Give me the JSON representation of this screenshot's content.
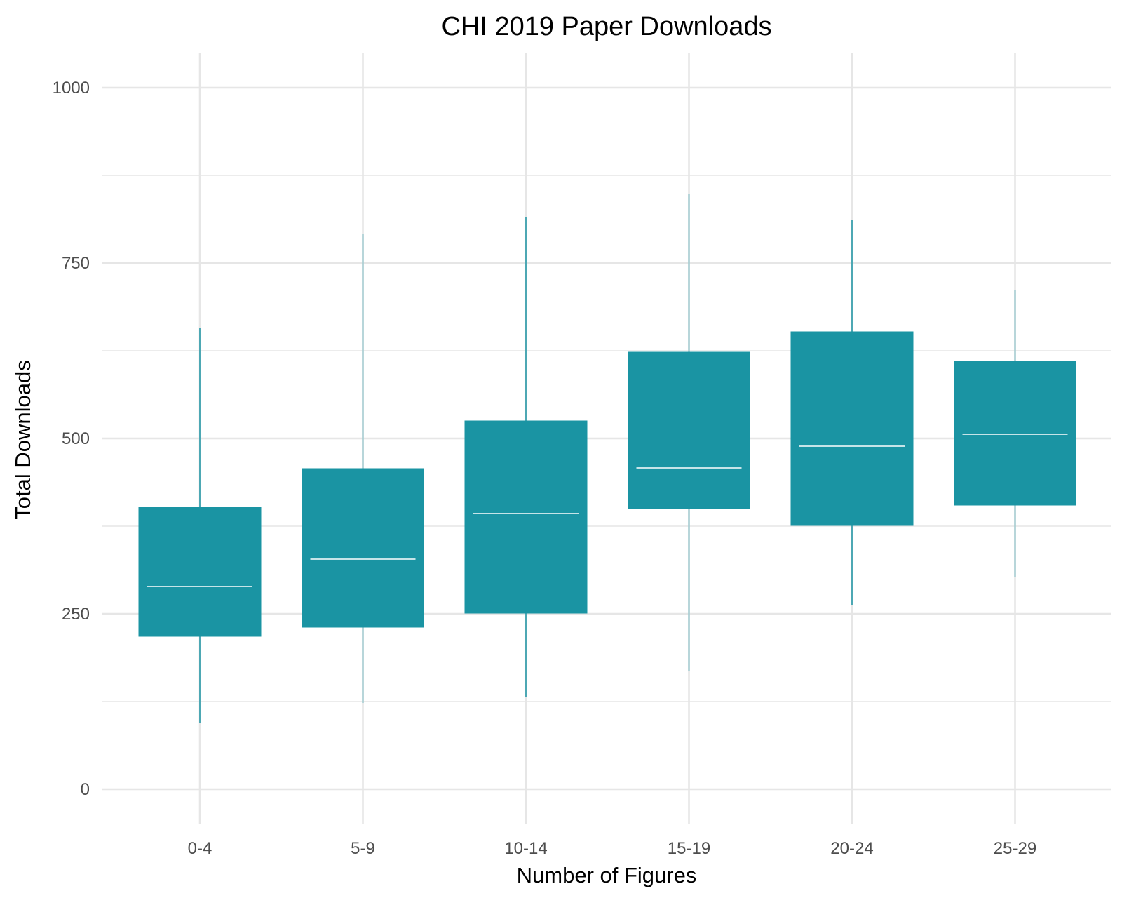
{
  "chart_data": {
    "type": "box",
    "title": "CHI 2019 Paper Downloads",
    "xlabel": "Number of Figures",
    "ylabel": "Total Downloads",
    "categories": [
      "0-4",
      "5-9",
      "10-14",
      "15-19",
      "20-24",
      "25-29"
    ],
    "boxes": [
      {
        "category": "0-4",
        "whisker_low": 95,
        "q1": 218,
        "median": 289,
        "q3": 402,
        "whisker_high": 658
      },
      {
        "category": "5-9",
        "whisker_low": 123,
        "q1": 231,
        "median": 328,
        "q3": 457,
        "whisker_high": 791
      },
      {
        "category": "10-14",
        "whisker_low": 132,
        "q1": 251,
        "median": 393,
        "q3": 525,
        "whisker_high": 815
      },
      {
        "category": "15-19",
        "whisker_low": 168,
        "q1": 400,
        "median": 458,
        "q3": 623,
        "whisker_high": 848
      },
      {
        "category": "20-24",
        "whisker_low": 262,
        "q1": 376,
        "median": 489,
        "q3": 652,
        "whisker_high": 812
      },
      {
        "category": "25-29",
        "whisker_low": 303,
        "q1": 405,
        "median": 506,
        "q3": 610,
        "whisker_high": 711
      }
    ],
    "yticks": [
      0,
      250,
      500,
      750,
      1000
    ],
    "ylim": [
      -50,
      1050
    ],
    "grid": true,
    "colors": {
      "box_fill": "#1a94a3",
      "median_line": "#ffffff",
      "whisker": "#1a94a3",
      "grid": "#e6e6e6",
      "tick_text": "#4d4d4d"
    }
  }
}
